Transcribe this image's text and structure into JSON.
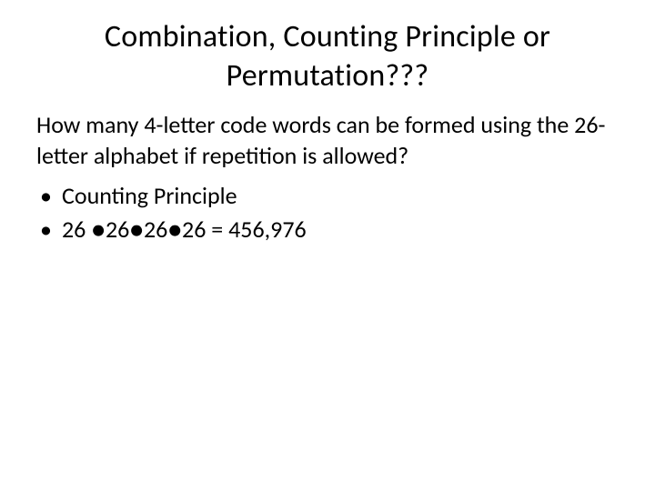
{
  "slide": {
    "title": "Combination, Counting Principle or Permutation???",
    "question": "How many 4-letter code words can be formed using the 26-letter alphabet if repetition is allowed?",
    "bullets": [
      "Counting Principle",
      "26 ●26●26●26 = 456,976"
    ],
    "colors": {
      "background": "#ffffff",
      "text": "#000000"
    },
    "typography": {
      "title_fontsize": 34,
      "body_fontsize": 26,
      "font_family": "Calibri"
    }
  }
}
